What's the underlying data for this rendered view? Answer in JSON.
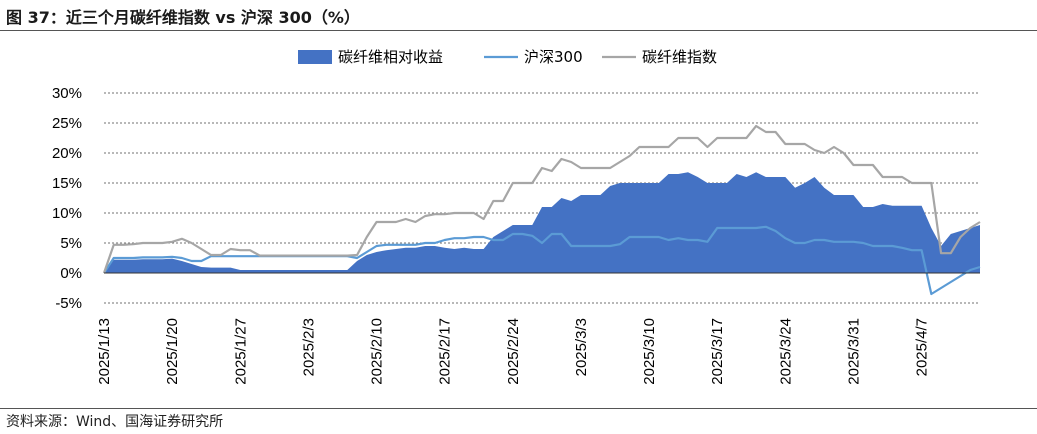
{
  "figure": {
    "title": "图 37：近三个月碳纤维指数 vs 沪深 300（%）",
    "source": "资料来源：Wind、国海证券研究所"
  },
  "chart_data": {
    "type": "area+line",
    "title": "近三个月碳纤维指数 vs 沪深 300（%）",
    "xlabel": "",
    "ylabel": "",
    "ylim": [
      -5,
      30
    ],
    "y_ticks": [
      -5,
      0,
      5,
      10,
      15,
      20,
      25,
      30
    ],
    "y_tick_labels": [
      "-5%",
      "0%",
      "5%",
      "10%",
      "15%",
      "20%",
      "25%",
      "30%"
    ],
    "grid": "horizontal-dashed",
    "legend_position": "top",
    "x_tick_labels": [
      "2025/1/13",
      "2025/1/20",
      "2025/1/27",
      "2025/2/3",
      "2025/2/10",
      "2025/2/17",
      "2025/2/24",
      "2025/3/3",
      "2025/3/10",
      "2025/3/17",
      "2025/3/24",
      "2025/3/31",
      "2025/4/7"
    ],
    "x_tick_days": [
      0,
      7,
      14,
      21,
      28,
      35,
      42,
      49,
      56,
      63,
      70,
      77,
      84
    ],
    "x_days": [
      0,
      1,
      2,
      3,
      4,
      5,
      6,
      7,
      8,
      9,
      10,
      11,
      12,
      13,
      14,
      15,
      16,
      17,
      18,
      19,
      20,
      21,
      22,
      23,
      24,
      25,
      26,
      27,
      28,
      29,
      30,
      31,
      32,
      33,
      34,
      35,
      36,
      37,
      38,
      39,
      40,
      41,
      42,
      43,
      44,
      45,
      46,
      47,
      48,
      49,
      50,
      51,
      52,
      53,
      54,
      55,
      56,
      57,
      58,
      59,
      60,
      61,
      62,
      63,
      64,
      65,
      66,
      67,
      68,
      69,
      70,
      71,
      72,
      73,
      74,
      75,
      76,
      77,
      78,
      79,
      80,
      81,
      82,
      83,
      84,
      85,
      86,
      87,
      88,
      89,
      90
    ],
    "series": [
      {
        "name": "碳纤维相对收益",
        "kind": "area",
        "color": "#4472C4",
        "values": [
          0,
          2.2,
          2.2,
          2.2,
          2.3,
          2.3,
          2.3,
          2.4,
          2.0,
          1.5,
          1.0,
          0.9,
          0.9,
          0.9,
          0.5,
          0.5,
          0.5,
          0.5,
          0.5,
          0.5,
          0.5,
          0.5,
          0.5,
          0.5,
          0.5,
          0.5,
          2.0,
          3.0,
          3.5,
          3.8,
          4.0,
          4.2,
          4.2,
          4.5,
          4.5,
          4.2,
          4.0,
          4.2,
          4.0,
          4.0,
          6.0,
          7.0,
          8.0,
          8.0,
          8.0,
          11.0,
          11.0,
          12.5,
          12.0,
          13.0,
          13.0,
          13.0,
          14.5,
          15.0,
          15.0,
          15.0,
          15.0,
          15.0,
          16.5,
          16.5,
          16.8,
          16.0,
          15.0,
          15.0,
          15.0,
          16.5,
          16.0,
          16.8,
          16.0,
          16.0,
          16.0,
          14.2,
          15.0,
          16.0,
          14.2,
          13.0,
          13.0,
          13.0,
          11.0,
          11.0,
          11.5,
          11.2,
          11.2,
          11.2,
          11.2,
          7.5,
          4.5,
          6.5,
          7.0,
          7.5,
          8.0
        ]
      },
      {
        "name": "沪深300",
        "kind": "line",
        "color": "#5B9BD5",
        "values": [
          0,
          2.5,
          2.5,
          2.5,
          2.6,
          2.6,
          2.6,
          2.7,
          2.5,
          2.0,
          2.0,
          2.8,
          2.8,
          2.8,
          2.8,
          2.8,
          2.8,
          2.8,
          2.8,
          2.8,
          2.8,
          2.8,
          2.8,
          2.8,
          2.8,
          2.8,
          2.5,
          3.5,
          4.5,
          4.7,
          4.7,
          4.7,
          4.7,
          5.0,
          5.0,
          5.5,
          5.8,
          5.8,
          6.0,
          6.0,
          5.5,
          5.5,
          6.5,
          6.5,
          6.2,
          5.0,
          6.5,
          6.5,
          4.5,
          4.5,
          4.5,
          4.5,
          4.5,
          4.8,
          6.0,
          6.0,
          6.0,
          6.0,
          5.5,
          5.8,
          5.5,
          5.5,
          5.2,
          7.5,
          7.5,
          7.5,
          7.5,
          7.5,
          7.7,
          7.0,
          5.8,
          5.0,
          5.0,
          5.5,
          5.5,
          5.2,
          5.2,
          5.2,
          5.0,
          4.5,
          4.5,
          4.5,
          4.2,
          3.8,
          3.8,
          -3.5,
          -2.5,
          -1.5,
          -0.5,
          0.5,
          1.0
        ]
      },
      {
        "name": "碳纤维指数",
        "kind": "line",
        "color": "#A6A6A6",
        "values": [
          0,
          4.7,
          4.7,
          4.8,
          5.0,
          5.0,
          5.0,
          5.2,
          5.7,
          5.0,
          4.0,
          3.0,
          3.0,
          4.0,
          3.8,
          3.8,
          2.9,
          2.9,
          2.9,
          2.9,
          2.9,
          2.9,
          2.9,
          2.9,
          2.9,
          2.9,
          3.0,
          6.0,
          8.5,
          8.5,
          8.5,
          9.0,
          8.5,
          9.5,
          9.8,
          9.8,
          10.0,
          10.0,
          10.0,
          9.0,
          12.0,
          12.0,
          15.0,
          15.0,
          15.0,
          17.5,
          17.0,
          19.0,
          18.5,
          17.5,
          17.5,
          17.5,
          17.5,
          18.5,
          19.5,
          21.0,
          21.0,
          21.0,
          21.0,
          22.5,
          22.5,
          22.5,
          21.0,
          22.5,
          22.5,
          22.5,
          22.5,
          24.5,
          23.5,
          23.5,
          21.5,
          21.5,
          21.5,
          20.5,
          20.0,
          21.0,
          20.0,
          18.0,
          18.0,
          18.0,
          16.0,
          16.0,
          16.0,
          15.0,
          15.0,
          15.0,
          3.3,
          3.3,
          6.0,
          7.5,
          8.5
        ]
      }
    ]
  }
}
